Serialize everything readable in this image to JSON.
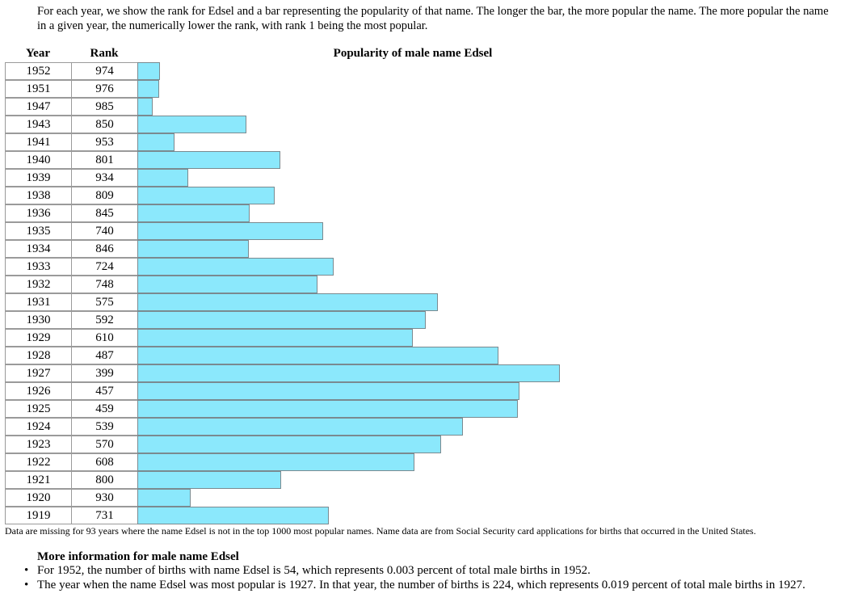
{
  "intro": "For each year, we show the rank for Edsel and a bar representing the popularity of that name. The longer the bar, the more popular the name. The more popular the name in a given year, the numerically lower the rank, with rank 1 being the most popular.",
  "table_headers": {
    "year": "Year",
    "rank": "Rank",
    "popularity": "Popularity of male name Edsel"
  },
  "colors": {
    "bar": "#8be8fc",
    "bar_border": "#7a8a90",
    "cell_border": "#9a9a9a"
  },
  "chart_data": {
    "type": "bar",
    "orientation": "horizontal",
    "title": "Popularity of male name Edsel",
    "categories": [
      "1952",
      "1951",
      "1947",
      "1943",
      "1941",
      "1940",
      "1939",
      "1938",
      "1936",
      "1935",
      "1934",
      "1933",
      "1932",
      "1931",
      "1930",
      "1929",
      "1928",
      "1927",
      "1926",
      "1925",
      "1924",
      "1923",
      "1922",
      "1921",
      "1920",
      "1919"
    ],
    "ranks": [
      974,
      976,
      985,
      850,
      953,
      801,
      934,
      809,
      845,
      740,
      846,
      724,
      748,
      575,
      592,
      610,
      487,
      399,
      457,
      459,
      539,
      570,
      608,
      800,
      930,
      731
    ],
    "rank_range": [
      1,
      1000
    ]
  },
  "note": "Data are missing for 93 years where the name Edsel is not in the top 1000 most popular names. Name data are from Social Security card applications for births that occurred in the United States.",
  "more_info": {
    "title": "More information for male name Edsel",
    "facts": [
      "For 1952, the number of births with name Edsel is 54, which represents 0.003 percent of total male births in 1952.",
      "The year when the name Edsel was most popular is 1927. In that year, the number of births is 224, which represents 0.019 percent of total male births in 1927."
    ]
  }
}
